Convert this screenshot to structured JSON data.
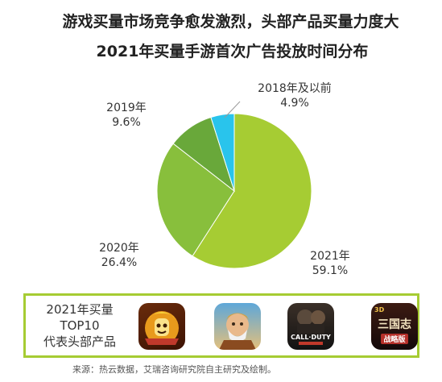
{
  "header": {
    "title": "游戏买量市场竞争愈发激烈，头部产品买量力度大",
    "subtitle": "2021年买量手游首次广告投放时间分布"
  },
  "chart_data": {
    "type": "pie",
    "title": "2021年买量手游首次广告投放时间分布",
    "slices": [
      {
        "label": "2021年",
        "value": 59.1,
        "value_label": "59.1%",
        "color": "#a6cc33"
      },
      {
        "label": "2020年",
        "value": 26.4,
        "value_label": "26.4%",
        "color": "#88bf3c"
      },
      {
        "label": "2019年",
        "value": 9.6,
        "value_label": "9.6%",
        "color": "#69a83a"
      },
      {
        "label": "2018年及以前",
        "value": 4.9,
        "value_label": "4.9%",
        "color": "#29c4ec"
      }
    ],
    "start_angle_deg": 0,
    "direction": "clockwise"
  },
  "top10": {
    "label_lines": [
      "2021年买量",
      "TOP10",
      "代表头部产品"
    ],
    "apps": [
      {
        "name": "monkey-king-game-icon"
      },
      {
        "name": "warrior-strategy-game-icon"
      },
      {
        "name": "call-of-duty-game-icon",
        "text_1": "CALL·DUTY"
      },
      {
        "name": "three-kingdoms-strategy-game-icon",
        "text_1": "三国志",
        "text_2": "战略版",
        "badge": "3D"
      }
    ]
  },
  "footer": {
    "source": "来源：热云数据，艾瑞咨询研究院自主研究及绘制。"
  }
}
